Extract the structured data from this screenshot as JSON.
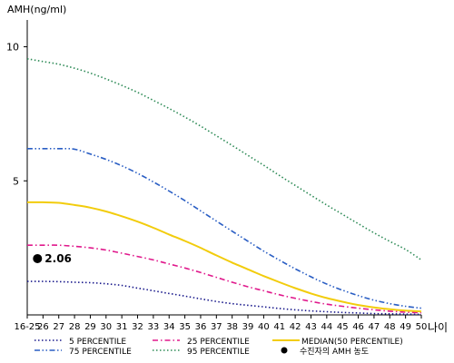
{
  "chart_data": {
    "type": "line",
    "ylabel": "AMH(ng/ml)",
    "xlabel": "나이",
    "ylim": [
      0,
      11
    ],
    "yticks": [
      5,
      10
    ],
    "grid": false,
    "legend_position": "bottom",
    "categories": [
      "16-25",
      "26",
      "27",
      "28",
      "29",
      "30",
      "31",
      "32",
      "33",
      "34",
      "35",
      "36",
      "37",
      "38",
      "39",
      "40",
      "41",
      "42",
      "43",
      "44",
      "45",
      "46",
      "47",
      "48",
      "49",
      "50"
    ],
    "series": [
      {
        "name": "5 PERCENTILE",
        "color": "#1a1a8c",
        "dash": "dot",
        "values": [
          1.25,
          1.25,
          1.24,
          1.22,
          1.2,
          1.16,
          1.1,
          1.0,
          0.9,
          0.8,
          0.7,
          0.6,
          0.5,
          0.42,
          0.36,
          0.3,
          0.24,
          0.19,
          0.15,
          0.12,
          0.09,
          0.07,
          0.05,
          0.04,
          0.03,
          0.02
        ]
      },
      {
        "name": "25 PERCENTILE",
        "color": "#e0198c",
        "dash": "dashdot",
        "values": [
          2.6,
          2.6,
          2.6,
          2.56,
          2.5,
          2.42,
          2.3,
          2.18,
          2.05,
          1.9,
          1.75,
          1.58,
          1.4,
          1.22,
          1.05,
          0.9,
          0.75,
          0.62,
          0.5,
          0.4,
          0.32,
          0.25,
          0.19,
          0.14,
          0.1,
          0.08
        ]
      },
      {
        "name": "MEDIAN(50 PERCENTILE)",
        "color": "#f2cc0c",
        "dash": "solid",
        "values": [
          4.2,
          4.2,
          4.18,
          4.1,
          4.0,
          3.86,
          3.68,
          3.48,
          3.25,
          3.0,
          2.76,
          2.5,
          2.22,
          1.95,
          1.7,
          1.45,
          1.22,
          1.0,
          0.8,
          0.63,
          0.49,
          0.37,
          0.28,
          0.21,
          0.16,
          0.13
        ]
      },
      {
        "name": "75 PERCENTILE",
        "color": "#2a5ec4",
        "dash": "dashdotdot",
        "values": [
          6.2,
          6.2,
          6.2,
          6.18,
          6.0,
          5.8,
          5.56,
          5.28,
          4.96,
          4.62,
          4.26,
          3.88,
          3.5,
          3.12,
          2.75,
          2.38,
          2.04,
          1.72,
          1.42,
          1.15,
          0.92,
          0.72,
          0.55,
          0.42,
          0.32,
          0.25
        ]
      },
      {
        "name": "95 PERCENTILE",
        "color": "#2e8b57",
        "dash": "dot",
        "values": [
          9.55,
          9.45,
          9.35,
          9.2,
          9.02,
          8.8,
          8.56,
          8.3,
          8.0,
          7.7,
          7.38,
          7.04,
          6.68,
          6.32,
          5.95,
          5.58,
          5.2,
          4.83,
          4.46,
          4.1,
          3.75,
          3.4,
          3.06,
          2.74,
          2.44,
          2.05
        ]
      }
    ],
    "marker": {
      "name": "수진자의 AMH 농도",
      "category": "16-25",
      "x_offset": 0.65,
      "value": 2.1,
      "label": "2.06",
      "color": "#000000"
    }
  }
}
